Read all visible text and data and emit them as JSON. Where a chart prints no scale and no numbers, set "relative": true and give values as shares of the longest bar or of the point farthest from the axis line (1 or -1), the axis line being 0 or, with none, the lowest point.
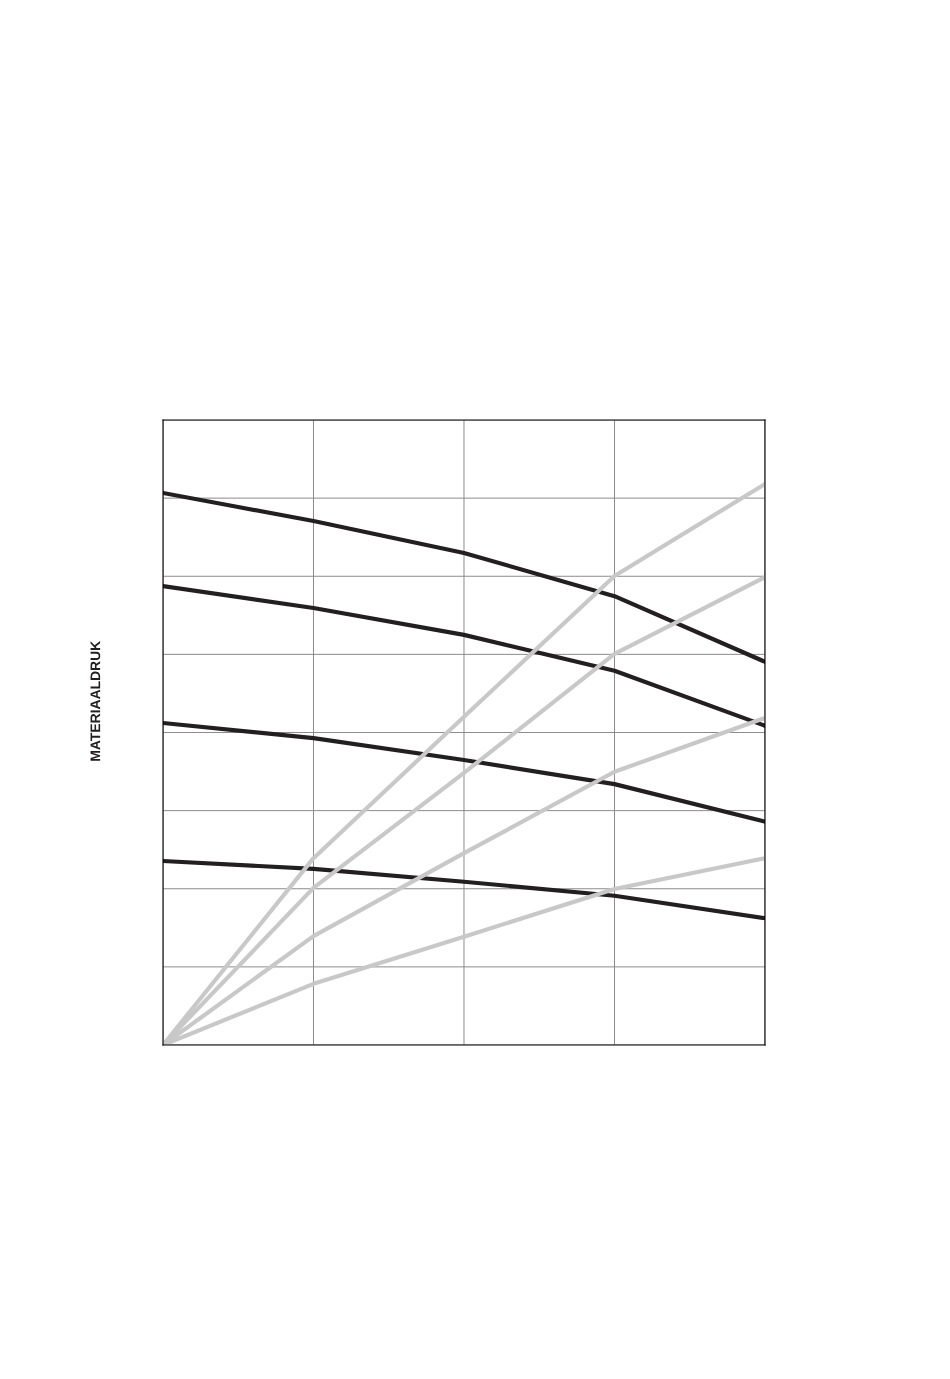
{
  "chart_data": {
    "type": "line",
    "ylabel": "MATERIAALDRUK",
    "relative": true,
    "grid": true,
    "marker": "none",
    "line_style": "solid",
    "categories": [
      null,
      null,
      null,
      null,
      null
    ],
    "series": [
      {
        "color": "#231f20",
        "values": [
          0.984,
          0.934,
          0.877,
          0.8,
          0.683
        ]
      },
      {
        "color": "#231f20",
        "values": [
          0.818,
          0.779,
          0.731,
          0.667,
          0.569
        ]
      },
      {
        "color": "#231f20",
        "values": [
          0.574,
          0.547,
          0.508,
          0.465,
          0.398
        ]
      },
      {
        "color": "#231f20",
        "values": [
          0.328,
          0.314,
          0.291,
          0.266,
          0.226
        ]
      },
      {
        "color": "#c8c8c8",
        "values": [
          0,
          0.333,
          0.585,
          0.836,
          1
        ]
      },
      {
        "color": "#c8c8c8",
        "values": [
          0,
          0.28,
          0.485,
          0.697,
          0.834
        ]
      },
      {
        "color": "#c8c8c8",
        "values": [
          0,
          0.194,
          0.342,
          0.487,
          0.583
        ]
      },
      {
        "color": "#c8c8c8",
        "values": [
          0,
          0.109,
          0.193,
          0.278,
          0.333
        ]
      }
    ]
  }
}
